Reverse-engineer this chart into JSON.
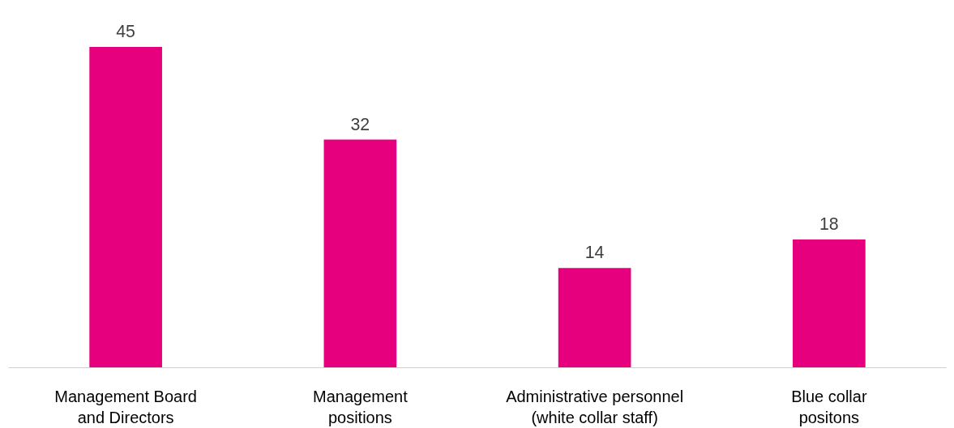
{
  "chart_data": {
    "type": "bar",
    "categories": [
      "Management Board\nand Directors",
      "Management\npositions",
      "Administrative personnel\n(white collar staff)",
      "Blue collar\npositons"
    ],
    "values": [
      45,
      32,
      14,
      18
    ],
    "color": "#e6007e",
    "data_labels": true
  }
}
